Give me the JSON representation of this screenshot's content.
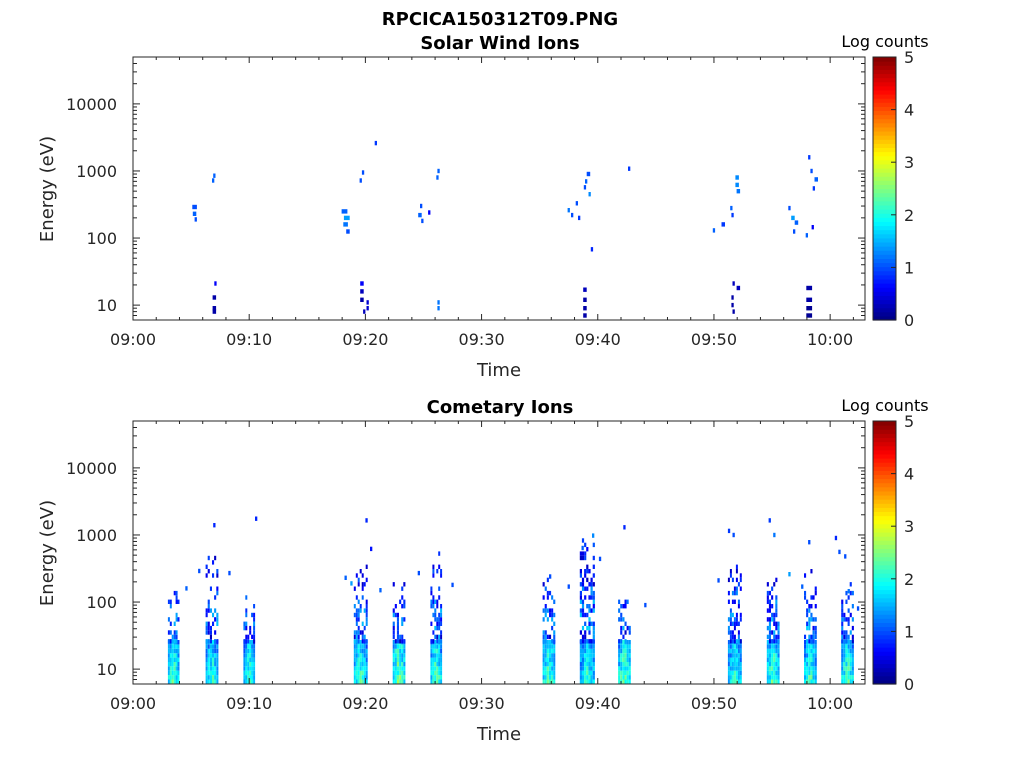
{
  "figure_title": "RPCICA150312T09.PNG",
  "chart_data": [
    {
      "type": "heatmap",
      "title": "Solar Wind Ions",
      "xlabel": "Time",
      "ylabel": "Energy (eV)",
      "x_ticks": [
        "09:00",
        "09:10",
        "09:20",
        "09:30",
        "09:40",
        "09:50",
        "10:00"
      ],
      "x_range_minutes": [
        0,
        63
      ],
      "y_scale": "log",
      "y_range": [
        6,
        50000
      ],
      "y_ticks": [
        "10",
        "100",
        "1000",
        "10000"
      ],
      "colorbar": {
        "label": "Log counts",
        "range": [
          0,
          5
        ],
        "ticks": [
          "0",
          "1",
          "2",
          "3",
          "4",
          "5"
        ],
        "colormap": "jet"
      },
      "grid": false,
      "cells": [
        {
          "t": 5.3,
          "e": 290,
          "dt": 0.4,
          "c": 1.0
        },
        {
          "t": 5.3,
          "e": 230,
          "dt": 0.3,
          "c": 1.1
        },
        {
          "t": 5.4,
          "e": 190,
          "dt": 0.2,
          "c": 1.0
        },
        {
          "t": 7.0,
          "e": 850,
          "dt": 0.2,
          "c": 1.1
        },
        {
          "t": 6.9,
          "e": 720,
          "dt": 0.2,
          "c": 1.1
        },
        {
          "t": 7.1,
          "e": 21,
          "dt": 0.2,
          "c": 0.6
        },
        {
          "t": 7.0,
          "e": 13,
          "dt": 0.3,
          "c": 0.2
        },
        {
          "t": 7.0,
          "e": 9,
          "dt": 0.3,
          "c": 0.2
        },
        {
          "t": 7.0,
          "e": 8,
          "dt": 0.3,
          "c": 0.2
        },
        {
          "t": 18.2,
          "e": 250,
          "dt": 0.5,
          "c": 1.1
        },
        {
          "t": 18.4,
          "e": 200,
          "dt": 0.5,
          "c": 1.4
        },
        {
          "t": 18.3,
          "e": 160,
          "dt": 0.4,
          "c": 1.2
        },
        {
          "t": 18.5,
          "e": 125,
          "dt": 0.3,
          "c": 1.0
        },
        {
          "t": 19.6,
          "e": 720,
          "dt": 0.2,
          "c": 1.0
        },
        {
          "t": 19.8,
          "e": 950,
          "dt": 0.2,
          "c": 1.0
        },
        {
          "t": 20.9,
          "e": 2600,
          "dt": 0.2,
          "c": 0.9
        },
        {
          "t": 19.7,
          "e": 21,
          "dt": 0.3,
          "c": 0.6
        },
        {
          "t": 19.7,
          "e": 16,
          "dt": 0.3,
          "c": 0.3
        },
        {
          "t": 19.7,
          "e": 12,
          "dt": 0.3,
          "c": 0.2
        },
        {
          "t": 20.2,
          "e": 11,
          "dt": 0.2,
          "c": 0.4
        },
        {
          "t": 20.2,
          "e": 9,
          "dt": 0.2,
          "c": 0.4
        },
        {
          "t": 19.9,
          "e": 8,
          "dt": 0.2,
          "c": 0.3
        },
        {
          "t": 24.7,
          "e": 220,
          "dt": 0.3,
          "c": 1.1
        },
        {
          "t": 24.8,
          "e": 300,
          "dt": 0.2,
          "c": 1.0
        },
        {
          "t": 25.5,
          "e": 240,
          "dt": 0.2,
          "c": 0.6
        },
        {
          "t": 24.9,
          "e": 180,
          "dt": 0.2,
          "c": 1.0
        },
        {
          "t": 26.3,
          "e": 1000,
          "dt": 0.2,
          "c": 1.1
        },
        {
          "t": 26.2,
          "e": 800,
          "dt": 0.2,
          "c": 1.1
        },
        {
          "t": 26.3,
          "e": 11,
          "dt": 0.2,
          "c": 1.2
        },
        {
          "t": 26.3,
          "e": 9,
          "dt": 0.2,
          "c": 1.2
        },
        {
          "t": 37.5,
          "e": 260,
          "dt": 0.2,
          "c": 1.2
        },
        {
          "t": 37.8,
          "e": 220,
          "dt": 0.2,
          "c": 1.0
        },
        {
          "t": 38.4,
          "e": 200,
          "dt": 0.2,
          "c": 0.9
        },
        {
          "t": 38.2,
          "e": 330,
          "dt": 0.2,
          "c": 1.0
        },
        {
          "t": 39.2,
          "e": 900,
          "dt": 0.3,
          "c": 1.0
        },
        {
          "t": 39.0,
          "e": 700,
          "dt": 0.2,
          "c": 1.1
        },
        {
          "t": 39.3,
          "e": 450,
          "dt": 0.2,
          "c": 1.3
        },
        {
          "t": 38.9,
          "e": 570,
          "dt": 0.2,
          "c": 1.0
        },
        {
          "t": 42.7,
          "e": 1080,
          "dt": 0.2,
          "c": 0.9
        },
        {
          "t": 39.5,
          "e": 68,
          "dt": 0.2,
          "c": 0.8
        },
        {
          "t": 38.9,
          "e": 17,
          "dt": 0.3,
          "c": 0.3
        },
        {
          "t": 38.9,
          "e": 12,
          "dt": 0.3,
          "c": 0.2
        },
        {
          "t": 38.9,
          "e": 9,
          "dt": 0.3,
          "c": 0.2
        },
        {
          "t": 38.9,
          "e": 7,
          "dt": 0.3,
          "c": 0.2
        },
        {
          "t": 50.0,
          "e": 130,
          "dt": 0.2,
          "c": 1.1
        },
        {
          "t": 50.8,
          "e": 160,
          "dt": 0.3,
          "c": 0.9
        },
        {
          "t": 51.6,
          "e": 220,
          "dt": 0.2,
          "c": 0.9
        },
        {
          "t": 51.5,
          "e": 280,
          "dt": 0.2,
          "c": 1.1
        },
        {
          "t": 52.0,
          "e": 800,
          "dt": 0.3,
          "c": 1.3
        },
        {
          "t": 52.0,
          "e": 620,
          "dt": 0.3,
          "c": 1.3
        },
        {
          "t": 52.1,
          "e": 500,
          "dt": 0.3,
          "c": 1.2
        },
        {
          "t": 51.7,
          "e": 21,
          "dt": 0.2,
          "c": 0.3
        },
        {
          "t": 52.1,
          "e": 18,
          "dt": 0.3,
          "c": 0.3
        },
        {
          "t": 51.6,
          "e": 13,
          "dt": 0.2,
          "c": 0.2
        },
        {
          "t": 51.6,
          "e": 10,
          "dt": 0.2,
          "c": 0.2
        },
        {
          "t": 51.7,
          "e": 8,
          "dt": 0.2,
          "c": 0.2
        },
        {
          "t": 56.5,
          "e": 280,
          "dt": 0.2,
          "c": 1.0
        },
        {
          "t": 56.8,
          "e": 200,
          "dt": 0.3,
          "c": 1.4
        },
        {
          "t": 57.1,
          "e": 170,
          "dt": 0.3,
          "c": 1.1
        },
        {
          "t": 56.9,
          "e": 125,
          "dt": 0.2,
          "c": 1.0
        },
        {
          "t": 58.0,
          "e": 110,
          "dt": 0.2,
          "c": 1.1
        },
        {
          "t": 58.5,
          "e": 145,
          "dt": 0.2,
          "c": 0.6
        },
        {
          "t": 58.2,
          "e": 1600,
          "dt": 0.2,
          "c": 0.9
        },
        {
          "t": 58.4,
          "e": 1000,
          "dt": 0.2,
          "c": 1.0
        },
        {
          "t": 58.8,
          "e": 750,
          "dt": 0.3,
          "c": 1.1
        },
        {
          "t": 58.6,
          "e": 550,
          "dt": 0.2,
          "c": 0.9
        },
        {
          "t": 58.2,
          "e": 18,
          "dt": 0.5,
          "c": 0.2
        },
        {
          "t": 58.2,
          "e": 12,
          "dt": 0.5,
          "c": 0.2
        },
        {
          "t": 58.2,
          "e": 9,
          "dt": 0.5,
          "c": 0.1
        },
        {
          "t": 58.2,
          "e": 7,
          "dt": 0.5,
          "c": 0.1
        }
      ]
    },
    {
      "type": "heatmap",
      "title": "Cometary Ions",
      "xlabel": "Time",
      "ylabel": "Energy (eV)",
      "x_ticks": [
        "09:00",
        "09:10",
        "09:20",
        "09:30",
        "09:40",
        "09:50",
        "10:00"
      ],
      "x_range_minutes": [
        0,
        63
      ],
      "y_scale": "log",
      "y_range": [
        6,
        50000
      ],
      "y_ticks": [
        "10",
        "100",
        "1000",
        "10000"
      ],
      "colorbar": {
        "label": "Log counts",
        "range": [
          0,
          5
        ],
        "ticks": [
          "0",
          "1",
          "2",
          "3",
          "4",
          "5"
        ],
        "colormap": "jet"
      },
      "grid": false,
      "bursts": [
        {
          "t": 3.5,
          "w": 1.0,
          "top": 150,
          "core": 2.5
        },
        {
          "t": 6.8,
          "w": 1.1,
          "top": 550,
          "core": 2.3
        },
        {
          "t": 10.0,
          "w": 1.0,
          "top": 120,
          "core": 2.4
        },
        {
          "t": 19.6,
          "w": 1.2,
          "top": 380,
          "core": 2.4
        },
        {
          "t": 22.9,
          "w": 1.1,
          "top": 200,
          "core": 2.7
        },
        {
          "t": 26.1,
          "w": 1.0,
          "top": 600,
          "core": 2.5
        },
        {
          "t": 35.8,
          "w": 1.1,
          "top": 220,
          "core": 2.5
        },
        {
          "t": 39.1,
          "w": 1.3,
          "top": 1300,
          "core": 2.3
        },
        {
          "t": 42.3,
          "w": 1.1,
          "top": 130,
          "core": 2.6
        },
        {
          "t": 51.8,
          "w": 1.2,
          "top": 350,
          "core": 2.3
        },
        {
          "t": 55.1,
          "w": 1.1,
          "top": 300,
          "core": 2.5
        },
        {
          "t": 58.3,
          "w": 1.1,
          "top": 300,
          "core": 2.4
        },
        {
          "t": 61.5,
          "w": 1.1,
          "top": 200,
          "core": 2.5
        }
      ],
      "scatter_cells": [
        {
          "t": 10.6,
          "e": 1750,
          "c": 0.8
        },
        {
          "t": 7.0,
          "e": 1400,
          "c": 0.8
        },
        {
          "t": 20.1,
          "e": 1650,
          "c": 0.8
        },
        {
          "t": 20.5,
          "e": 620,
          "c": 0.7
        },
        {
          "t": 18.3,
          "e": 230,
          "c": 1.1
        },
        {
          "t": 18.8,
          "e": 190,
          "c": 1.4
        },
        {
          "t": 24.6,
          "e": 270,
          "c": 1.0
        },
        {
          "t": 35.9,
          "e": 240,
          "c": 1.0
        },
        {
          "t": 38.7,
          "e": 640,
          "c": 1.1
        },
        {
          "t": 39.6,
          "e": 980,
          "c": 1.3
        },
        {
          "t": 42.3,
          "e": 1300,
          "c": 0.8
        },
        {
          "t": 50.4,
          "e": 210,
          "c": 1.0
        },
        {
          "t": 51.3,
          "e": 1150,
          "c": 0.9
        },
        {
          "t": 51.7,
          "e": 1000,
          "c": 1.0
        },
        {
          "t": 54.8,
          "e": 1650,
          "c": 0.9
        },
        {
          "t": 55.2,
          "e": 1000,
          "c": 1.2
        },
        {
          "t": 56.5,
          "e": 260,
          "c": 1.4
        },
        {
          "t": 57.6,
          "e": 170,
          "c": 1.1
        },
        {
          "t": 58.2,
          "e": 780,
          "c": 1.0
        },
        {
          "t": 60.5,
          "e": 900,
          "c": 0.8
        },
        {
          "t": 60.8,
          "e": 560,
          "c": 1.0
        },
        {
          "t": 61.3,
          "e": 480,
          "c": 1.0
        },
        {
          "t": 61.6,
          "e": 145,
          "c": 1.2
        },
        {
          "t": 5.7,
          "e": 290,
          "c": 1.0
        },
        {
          "t": 4.6,
          "e": 160,
          "c": 1.1
        },
        {
          "t": 8.3,
          "e": 270,
          "c": 1.0
        },
        {
          "t": 37.5,
          "e": 170,
          "c": 1.0
        },
        {
          "t": 40.2,
          "e": 440,
          "c": 1.0
        },
        {
          "t": 44.1,
          "e": 90,
          "c": 1.0
        },
        {
          "t": 62.4,
          "e": 80,
          "c": 1.0
        },
        {
          "t": 27.5,
          "e": 180,
          "c": 1.0
        },
        {
          "t": 21.3,
          "e": 150,
          "c": 1.1
        }
      ]
    }
  ]
}
